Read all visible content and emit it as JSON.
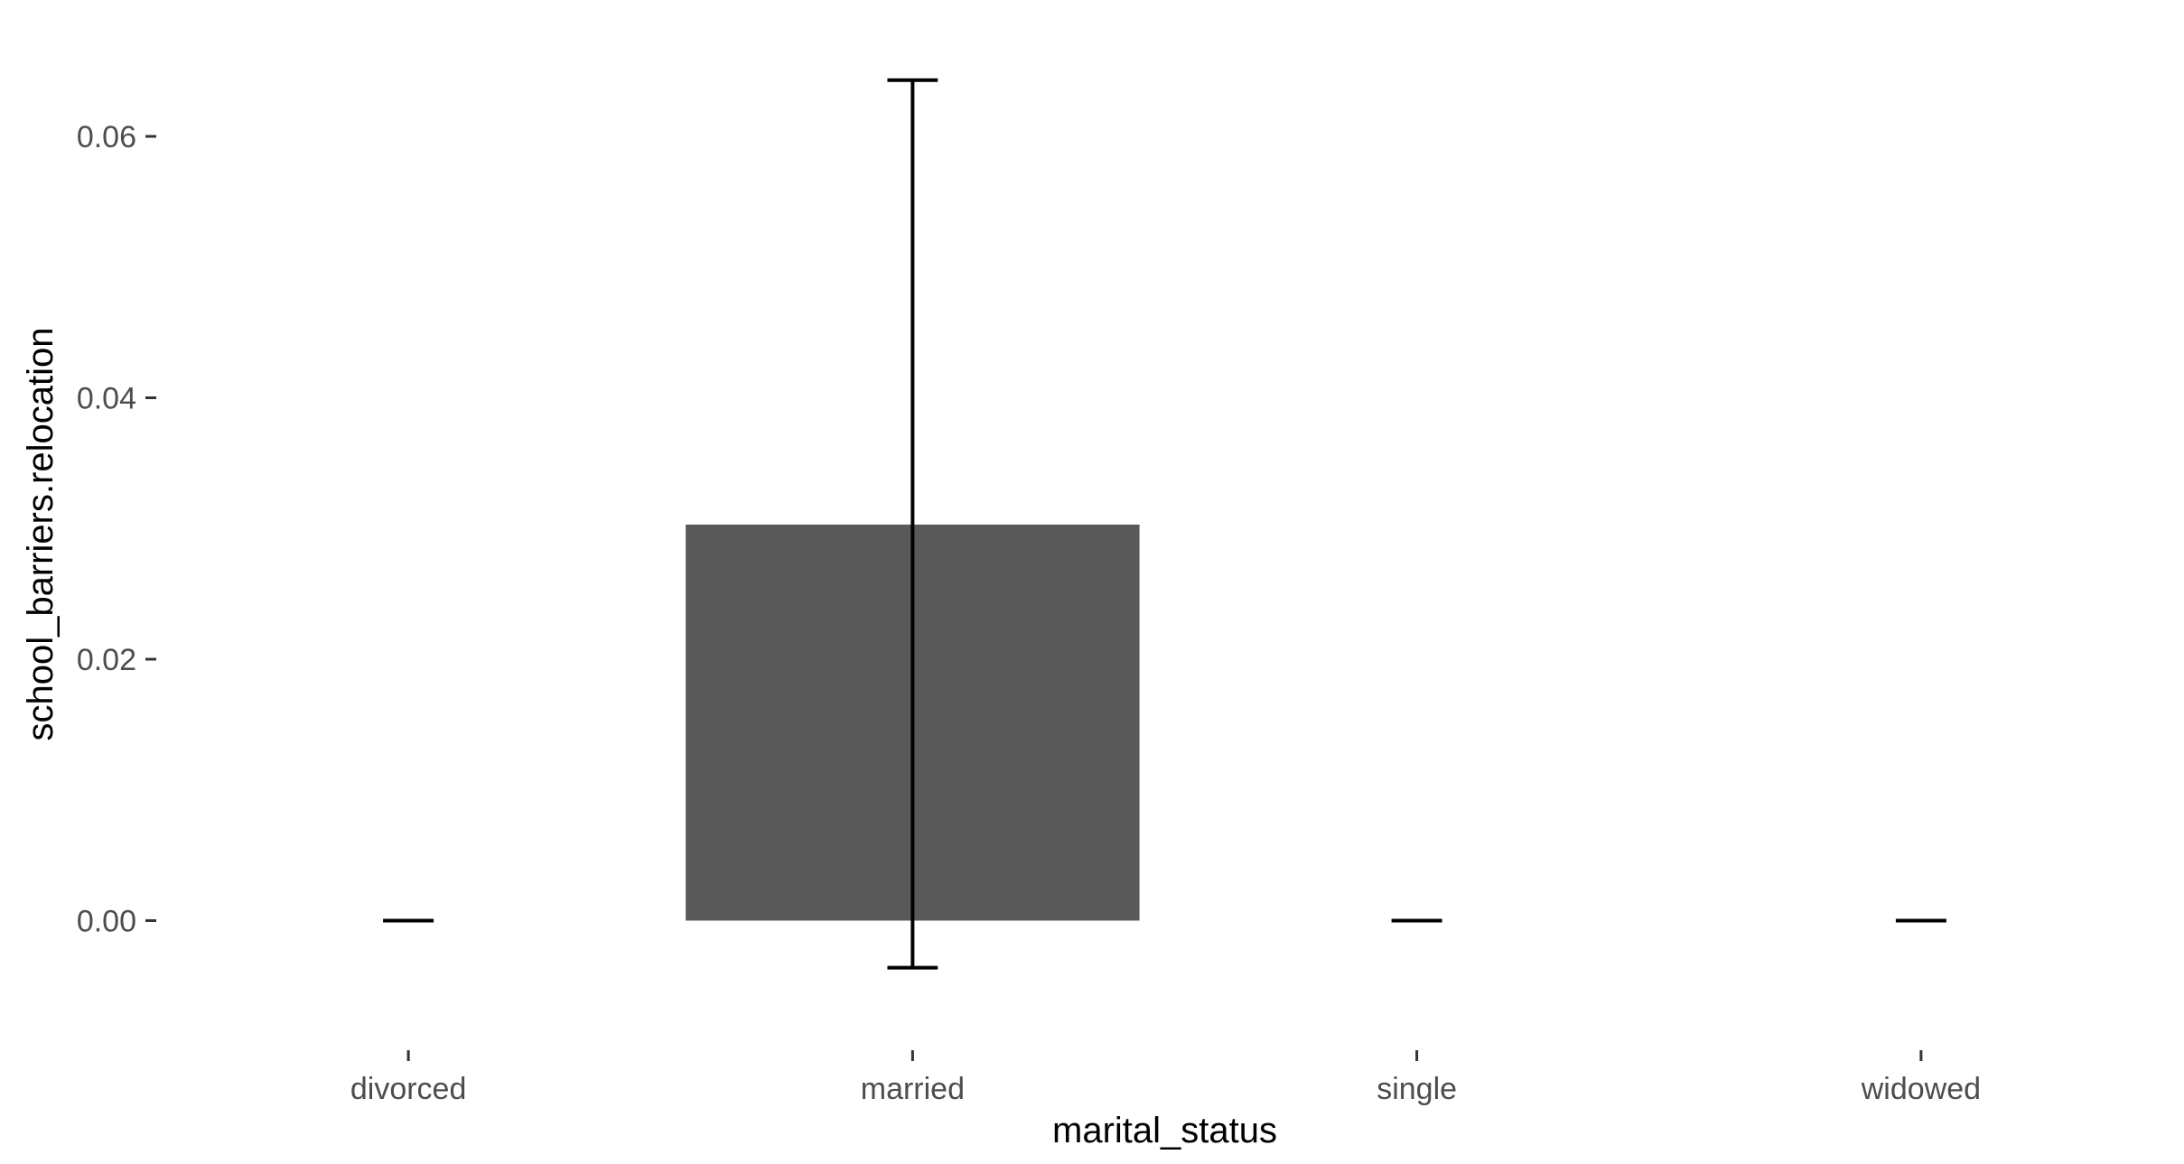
{
  "chart_data": {
    "type": "bar",
    "title": "",
    "xlabel": "marital_status",
    "ylabel": "school_barriers.relocation",
    "categories": [
      "divorced",
      "married",
      "single",
      "widowed"
    ],
    "values": [
      0.0,
      0.0303,
      0.0,
      0.0
    ],
    "error_bars": [
      {
        "lower": 0.0,
        "upper": 0.0
      },
      {
        "lower": -0.0036,
        "upper": 0.0643
      },
      {
        "lower": 0.0,
        "upper": 0.0
      },
      {
        "lower": 0.0,
        "upper": 0.0
      }
    ],
    "ylim": [
      -0.0066,
      0.0685
    ],
    "yticks": [
      0.0,
      0.02,
      0.04,
      0.06
    ],
    "ytick_labels": [
      "0.00",
      "0.02",
      "0.04",
      "0.06"
    ],
    "grid": false,
    "legend": "none",
    "colors": {
      "bar": "#595959",
      "errorbar": "#000000",
      "axis_text": "#4d4d4d",
      "background": "#ffffff"
    }
  }
}
